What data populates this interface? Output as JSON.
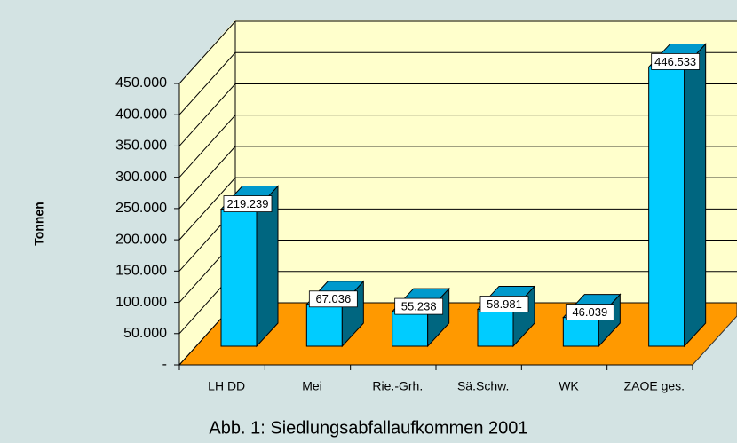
{
  "chart_data": {
    "type": "bar3d",
    "title": "Abb. 1: Siedlungsabfallaufkommen 2001",
    "y_label": "Tonnen",
    "categories": [
      "LH DD",
      "Mei",
      "Rie.-Grh.",
      "Sä.Schw.",
      "WK",
      "ZAOE ges."
    ],
    "values": [
      219239,
      67036,
      55238,
      58981,
      46039,
      446533
    ],
    "value_labels": [
      "219.239",
      "67.036",
      "55.238",
      "58.981",
      "46.039",
      "446.533"
    ],
    "color": "#00ccff",
    "ylim": [
      0,
      450000
    ],
    "yticks": [
      {
        "value": 0,
        "label": "-"
      },
      {
        "value": 50000,
        "label": "50.000"
      },
      {
        "value": 100000,
        "label": "100.000"
      },
      {
        "value": 150000,
        "label": "150.000"
      },
      {
        "value": 200000,
        "label": "200.000"
      },
      {
        "value": 250000,
        "label": "250.000"
      },
      {
        "value": 300000,
        "label": "300.000"
      },
      {
        "value": 350000,
        "label": "350.000"
      },
      {
        "value": 400000,
        "label": "400.000"
      },
      {
        "value": 450000,
        "label": "450.000"
      }
    ],
    "grid": true
  }
}
